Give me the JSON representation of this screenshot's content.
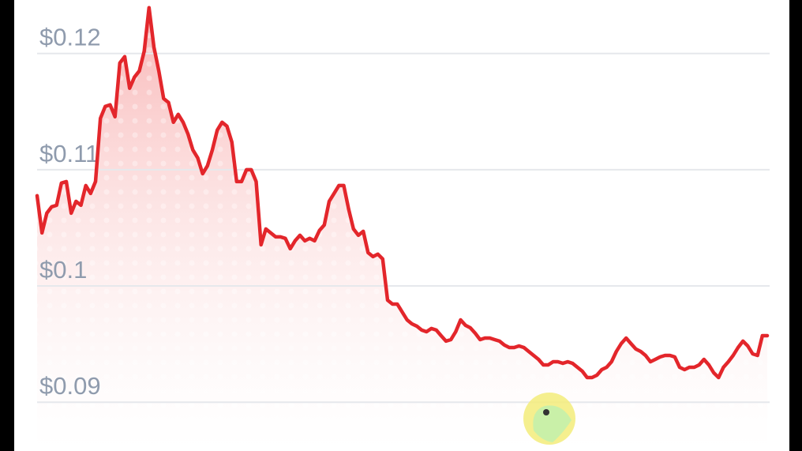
{
  "chart_data": {
    "type": "line",
    "color": "#e3262b",
    "ylim": [
      0.0858,
      0.1246
    ],
    "yticks": [
      {
        "value": 0.09,
        "label": "$0.09"
      },
      {
        "value": 0.1,
        "label": "$0.1"
      },
      {
        "value": 0.11,
        "label": "$0.11"
      },
      {
        "value": 0.12,
        "label": "$0.12"
      }
    ],
    "grid": true,
    "values": [
      0.10776,
      0.10456,
      0.10626,
      0.10681,
      0.10694,
      0.10885,
      0.10898,
      0.10626,
      0.10728,
      0.10694,
      0.10864,
      0.10796,
      0.10898,
      0.11442,
      0.11544,
      0.11558,
      0.11456,
      0.11918,
      0.11973,
      0.11701,
      0.11796,
      0.1185,
      0.1202,
      0.12394,
      0.12054,
      0.1185,
      0.11612,
      0.11578,
      0.11408,
      0.11476,
      0.11408,
      0.11306,
      0.1117,
      0.11102,
      0.10966,
      0.11034,
      0.1117,
      0.1134,
      0.11408,
      0.11374,
      0.11238,
      0.10898,
      0.10898,
      0.11,
      0.11,
      0.10898,
      0.10354,
      0.1049,
      0.10456,
      0.10422,
      0.10422,
      0.10409,
      0.1032,
      0.10388,
      0.10436,
      0.10388,
      0.10409,
      0.10388,
      0.10477,
      0.10524,
      0.10728,
      0.10796,
      0.10864,
      0.10864,
      0.1066,
      0.1049,
      0.10436,
      0.1047,
      0.10286,
      0.10252,
      0.10273,
      0.10232,
      0.09878,
      0.09844,
      0.09844,
      0.09776,
      0.09708,
      0.09674,
      0.09654,
      0.0962,
      0.09606,
      0.09634,
      0.0962,
      0.09572,
      0.09525,
      0.09538,
      0.09606,
      0.09708,
      0.09661,
      0.0964,
      0.09593,
      0.09538,
      0.09552,
      0.09552,
      0.09538,
      0.09525,
      0.09491,
      0.0947,
      0.0947,
      0.09484,
      0.0947,
      0.09436,
      0.09402,
      0.09368,
      0.09321,
      0.09321,
      0.09348,
      0.09348,
      0.09334,
      0.09348,
      0.09334,
      0.093,
      0.09266,
      0.09212,
      0.09212,
      0.09232,
      0.0928,
      0.093,
      0.09348,
      0.09436,
      0.09504,
      0.09552,
      0.09504,
      0.09457,
      0.09436,
      0.09402,
      0.09348,
      0.09368,
      0.09389,
      0.09402,
      0.09402,
      0.09389,
      0.093,
      0.0928,
      0.093,
      0.093,
      0.09321,
      0.09368,
      0.09321,
      0.09253,
      0.09212,
      0.093,
      0.09348,
      0.09402,
      0.0947,
      0.09525,
      0.09484,
      0.09416,
      0.09402,
      0.09572,
      0.09572
    ]
  }
}
